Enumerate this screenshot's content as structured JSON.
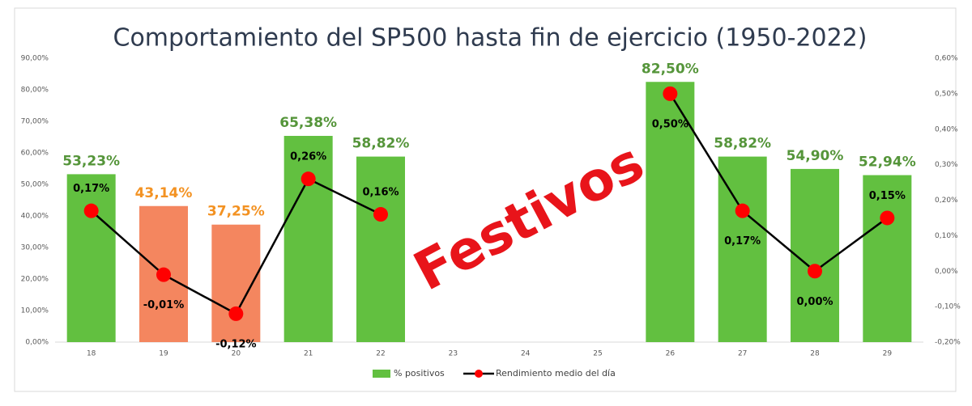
{
  "chart_data": {
    "type": "bar-line",
    "title": "Comportamiento del SP500 hasta fin de ejercicio (1950-2022)",
    "annotation": "Festivos",
    "categories": [
      "18",
      "19",
      "20",
      "21",
      "22",
      "23",
      "24",
      "25",
      "26",
      "27",
      "28",
      "29"
    ],
    "series": [
      {
        "name": "% positivos",
        "type": "bar",
        "color": "#62c040",
        "colors": [
          "#62c040",
          "#f4865f",
          "#f4865f",
          "#62c040",
          "#62c040",
          null,
          null,
          null,
          "#62c040",
          "#62c040",
          "#62c040",
          "#62c040"
        ],
        "label_colors": [
          "#55953a",
          "#f39222",
          "#f39222",
          "#55953a",
          "#55953a",
          null,
          null,
          null,
          "#55953a",
          "#55953a",
          "#55953a",
          "#55953a"
        ],
        "values": [
          53.23,
          43.14,
          37.25,
          65.38,
          58.82,
          null,
          null,
          null,
          82.5,
          58.82,
          54.9,
          52.94
        ],
        "value_labels": [
          "53,23%",
          "43,14%",
          "37,25%",
          "65,38%",
          "58,82%",
          null,
          null,
          null,
          "82,50%",
          "58,82%",
          "54,90%",
          "52,94%"
        ]
      },
      {
        "name": "Rendimiento medio del día",
        "type": "line",
        "axis": "y2",
        "color": "#000000",
        "marker_color": "#ff0000",
        "values": [
          0.17,
          -0.01,
          -0.12,
          0.26,
          0.16,
          null,
          null,
          null,
          0.5,
          0.17,
          0.0,
          0.15
        ],
        "value_labels": [
          "0,17%",
          "-0,01%",
          "-0,12%",
          "0,26%",
          "0,16%",
          null,
          null,
          null,
          "0,50%",
          "0,17%",
          "0,00%",
          "0,15%"
        ],
        "label_positions": [
          "above",
          "below",
          "below",
          "above",
          "above",
          null,
          null,
          null,
          "below",
          "below",
          "below",
          "above"
        ]
      }
    ],
    "ylim": [
      0,
      90
    ],
    "yticks": [
      {
        "value": 0,
        "label": "0,00%"
      },
      {
        "value": 10,
        "label": "10,00%"
      },
      {
        "value": 20,
        "label": "20,00%"
      },
      {
        "value": 30,
        "label": "30,00%"
      },
      {
        "value": 40,
        "label": "40,00%"
      },
      {
        "value": 50,
        "label": "50,00%"
      },
      {
        "value": 60,
        "label": "60,00%"
      },
      {
        "value": 70,
        "label": "70,00%"
      },
      {
        "value": 80,
        "label": "80,00%"
      },
      {
        "value": 90,
        "label": "90,00%"
      }
    ],
    "y2lim": [
      -0.2,
      0.6
    ],
    "y2ticks": [
      {
        "value": -0.2,
        "label": "-0,20%"
      },
      {
        "value": -0.1,
        "label": "-0,10%"
      },
      {
        "value": 0,
        "label": "0,00%"
      },
      {
        "value": 0.1,
        "label": "0,10%"
      },
      {
        "value": 0.2,
        "label": "0,20%"
      },
      {
        "value": 0.3,
        "label": "0,30%"
      },
      {
        "value": 0.4,
        "label": "0,40%"
      },
      {
        "value": 0.5,
        "label": "0,50%"
      },
      {
        "value": 0.6,
        "label": "0,60%"
      }
    ],
    "grid": false,
    "legend": "bottom"
  }
}
